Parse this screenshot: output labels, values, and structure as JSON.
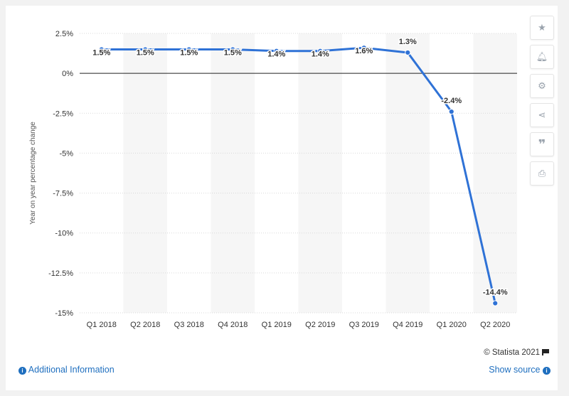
{
  "chart_data": {
    "type": "line",
    "categories": [
      "Q1 2018",
      "Q2 2018",
      "Q3 2018",
      "Q4 2018",
      "Q1 2019",
      "Q2 2019",
      "Q3 2019",
      "Q4 2019",
      "Q1 2020",
      "Q2 2020"
    ],
    "series": [
      {
        "values": [
          1.5,
          1.5,
          1.5,
          1.5,
          1.4,
          1.4,
          1.6,
          1.3,
          -2.4,
          -14.4
        ],
        "labels": [
          "1.5%",
          "1.5%",
          "1.5%",
          "1.5%",
          "1.4%",
          "1.4%",
          "1.6%",
          "1.3%",
          "-2.4%",
          "-14.4%"
        ]
      }
    ],
    "ylabel": "Year on year percentage change",
    "ylim": [
      -15,
      2.5
    ],
    "yticks": [
      2.5,
      0,
      -2.5,
      -5,
      -7.5,
      -10,
      -12.5,
      -15
    ],
    "ytick_labels": [
      "2.5%",
      "0%",
      "-2.5%",
      "-5%",
      "-7.5%",
      "-10%",
      "-12.5%",
      "-15%"
    ],
    "grid": true,
    "line_color": "#2f72d6"
  },
  "toolbar": {
    "favorite_icon": "star-icon",
    "alert_icon": "bell-icon",
    "settings_icon": "gear-icon",
    "share_icon": "share-icon",
    "cite_icon": "quote-icon",
    "print_icon": "print-icon"
  },
  "footer": {
    "credit": "© Statista 2021",
    "additional_info": "Additional Information",
    "show_source": "Show source"
  }
}
